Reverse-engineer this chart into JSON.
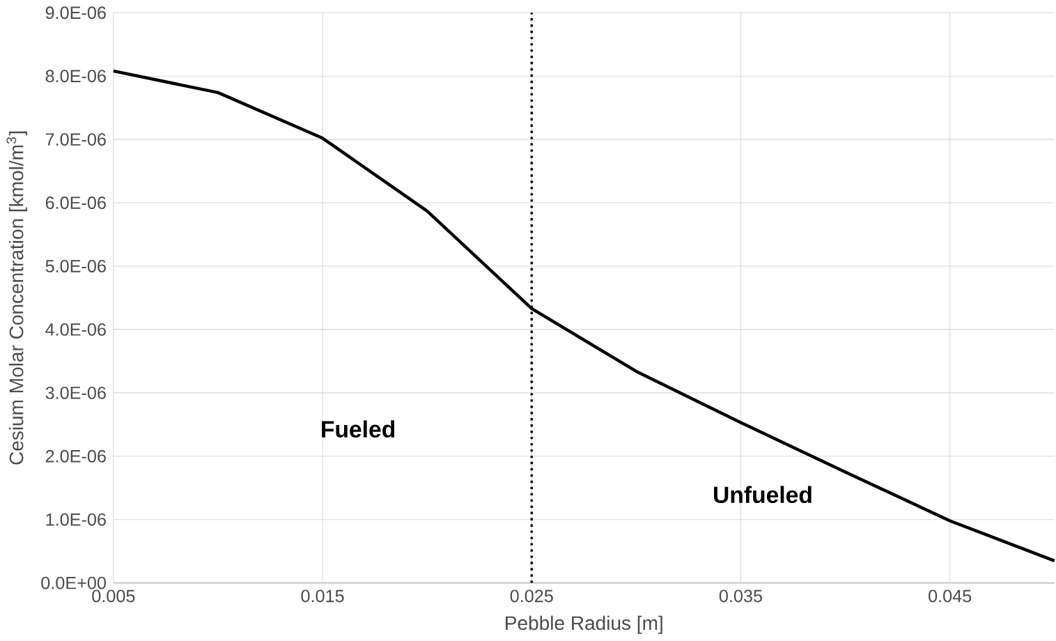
{
  "chart_data": {
    "type": "line",
    "xlabel": "Pebble Radius [m]",
    "ylabel": "Cesium Molar Concentration [kmol/m$^{3}$]",
    "x": [
      0.005,
      0.01,
      0.015,
      0.02,
      0.025,
      0.03,
      0.035,
      0.04,
      0.045,
      0.05
    ],
    "series": [
      {
        "color": "#000000",
        "values": [
          8.08e-06,
          7.74e-06,
          7.02e-06,
          5.87e-06,
          4.33e-06,
          3.34e-06,
          2.53e-06,
          1.75e-06,
          9.8e-07,
          3.5e-07
        ]
      }
    ],
    "xlim": [
      0.005,
      0.05
    ],
    "xticks": [
      0.005,
      0.015,
      0.025,
      0.035,
      0.045
    ],
    "ylim": [
      0,
      9e-06
    ],
    "yticks": [
      {
        "value": 0,
        "label": "0.0E+00"
      },
      {
        "value": 1e-06,
        "label": "1.0E-06"
      },
      {
        "value": 2e-06,
        "label": "2.0E-06"
      },
      {
        "value": 3e-06,
        "label": "3.0E-06"
      },
      {
        "value": 4e-06,
        "label": "4.0E-06"
      },
      {
        "value": 5e-06,
        "label": "5.0E-06"
      },
      {
        "value": 6e-06,
        "label": "6.0E-06"
      },
      {
        "value": 7e-06,
        "label": "7.0E-06"
      },
      {
        "value": 8e-06,
        "label": "8.0E-06"
      },
      {
        "value": 9e-06,
        "label": "9.0E-06"
      }
    ],
    "grid": true,
    "ref_lines": [
      {
        "axis": "x",
        "value": 0.025,
        "line_style": "dotted"
      }
    ],
    "annotations": [
      "Fueled",
      "Unfueled"
    ]
  }
}
